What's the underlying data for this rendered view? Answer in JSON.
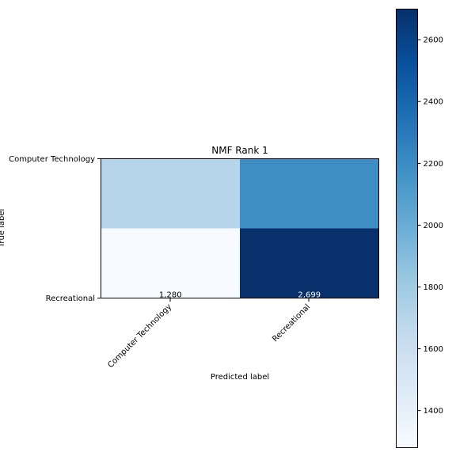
{
  "chart_data": {
    "type": "heatmap",
    "title": "NMF Rank 1",
    "xlabel": "Predicted label",
    "ylabel": "True label",
    "x_categories": [
      "Computer Technology",
      "Recreational"
    ],
    "y_categories": [
      "Computer Technology",
      "Recreational"
    ],
    "values": [
      [
        1700,
        2190
      ],
      [
        1280,
        2699
      ]
    ],
    "annotations": [
      [
        "",
        ""
      ],
      [
        "1,280",
        "2,699"
      ]
    ],
    "colormap": "Blues",
    "colorbar": {
      "range": [
        1280,
        2699
      ],
      "ticks": [
        1400,
        1600,
        1800,
        2000,
        2200,
        2400,
        2600
      ]
    }
  }
}
